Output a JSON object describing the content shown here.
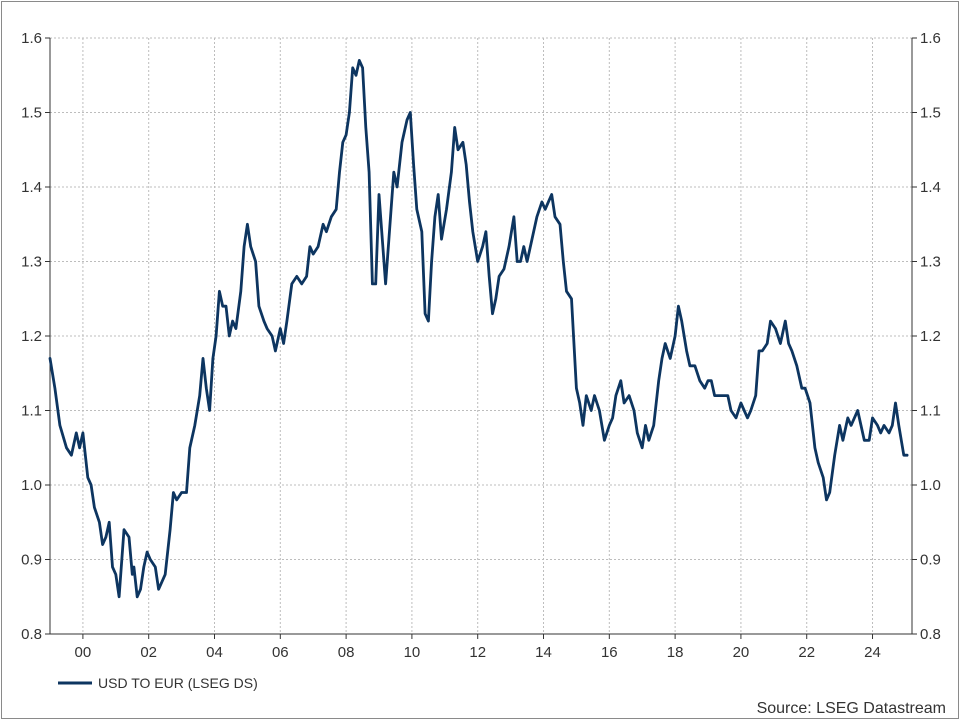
{
  "source": "Source: LSEG Datastream",
  "colors": {
    "series": "#0d3560",
    "grid": "#bdbdbd",
    "axis": "#333333",
    "text": "#333333"
  },
  "chart_data": {
    "type": "line",
    "title": "",
    "xlabel": "",
    "ylabel": "",
    "grid": true,
    "legend_position": "bottom-left",
    "xlim": [
      1999.0,
      2025.2
    ],
    "ylim": [
      0.8,
      1.6
    ],
    "x_ticks": [
      {
        "x": 2000,
        "label": "00"
      },
      {
        "x": 2002,
        "label": "02"
      },
      {
        "x": 2004,
        "label": "04"
      },
      {
        "x": 2006,
        "label": "06"
      },
      {
        "x": 2008,
        "label": "08"
      },
      {
        "x": 2010,
        "label": "10"
      },
      {
        "x": 2012,
        "label": "12"
      },
      {
        "x": 2014,
        "label": "14"
      },
      {
        "x": 2016,
        "label": "16"
      },
      {
        "x": 2018,
        "label": "18"
      },
      {
        "x": 2020,
        "label": "20"
      },
      {
        "x": 2022,
        "label": "22"
      },
      {
        "x": 2024,
        "label": "24"
      }
    ],
    "y_ticks": [
      "0.8",
      "0.9",
      "1.0",
      "1.1",
      "1.2",
      "1.3",
      "1.4",
      "1.5",
      "1.6"
    ],
    "series": [
      {
        "name": "USD TO EUR (LSEG DS)",
        "color": "#0d3560",
        "points": [
          [
            1999.0,
            1.17
          ],
          [
            1999.15,
            1.13
          ],
          [
            1999.3,
            1.08
          ],
          [
            1999.5,
            1.05
          ],
          [
            1999.65,
            1.04
          ],
          [
            1999.8,
            1.07
          ],
          [
            1999.9,
            1.05
          ],
          [
            2000.0,
            1.07
          ],
          [
            2000.15,
            1.01
          ],
          [
            2000.25,
            1.0
          ],
          [
            2000.35,
            0.97
          ],
          [
            2000.5,
            0.95
          ],
          [
            2000.6,
            0.92
          ],
          [
            2000.7,
            0.93
          ],
          [
            2000.8,
            0.95
          ],
          [
            2000.9,
            0.89
          ],
          [
            2001.0,
            0.88
          ],
          [
            2001.1,
            0.85
          ],
          [
            2001.25,
            0.94
          ],
          [
            2001.4,
            0.93
          ],
          [
            2001.5,
            0.88
          ],
          [
            2001.55,
            0.89
          ],
          [
            2001.65,
            0.85
          ],
          [
            2001.75,
            0.86
          ],
          [
            2001.85,
            0.89
          ],
          [
            2001.95,
            0.91
          ],
          [
            2002.05,
            0.9
          ],
          [
            2002.2,
            0.89
          ],
          [
            2002.3,
            0.86
          ],
          [
            2002.5,
            0.88
          ],
          [
            2002.65,
            0.94
          ],
          [
            2002.75,
            0.99
          ],
          [
            2002.85,
            0.98
          ],
          [
            2003.0,
            0.99
          ],
          [
            2003.15,
            0.99
          ],
          [
            2003.25,
            1.05
          ],
          [
            2003.4,
            1.08
          ],
          [
            2003.55,
            1.12
          ],
          [
            2003.65,
            1.17
          ],
          [
            2003.75,
            1.13
          ],
          [
            2003.85,
            1.1
          ],
          [
            2003.95,
            1.17
          ],
          [
            2004.05,
            1.2
          ],
          [
            2004.15,
            1.26
          ],
          [
            2004.25,
            1.24
          ],
          [
            2004.35,
            1.24
          ],
          [
            2004.45,
            1.2
          ],
          [
            2004.55,
            1.22
          ],
          [
            2004.65,
            1.21
          ],
          [
            2004.8,
            1.26
          ],
          [
            2004.9,
            1.32
          ],
          [
            2005.0,
            1.35
          ],
          [
            2005.1,
            1.32
          ],
          [
            2005.25,
            1.3
          ],
          [
            2005.35,
            1.24
          ],
          [
            2005.5,
            1.22
          ],
          [
            2005.6,
            1.21
          ],
          [
            2005.75,
            1.2
          ],
          [
            2005.85,
            1.18
          ],
          [
            2006.0,
            1.21
          ],
          [
            2006.1,
            1.19
          ],
          [
            2006.2,
            1.22
          ],
          [
            2006.35,
            1.27
          ],
          [
            2006.5,
            1.28
          ],
          [
            2006.65,
            1.27
          ],
          [
            2006.8,
            1.28
          ],
          [
            2006.9,
            1.32
          ],
          [
            2007.0,
            1.31
          ],
          [
            2007.15,
            1.32
          ],
          [
            2007.3,
            1.35
          ],
          [
            2007.4,
            1.34
          ],
          [
            2007.55,
            1.36
          ],
          [
            2007.7,
            1.37
          ],
          [
            2007.8,
            1.42
          ],
          [
            2007.9,
            1.46
          ],
          [
            2008.0,
            1.47
          ],
          [
            2008.1,
            1.5
          ],
          [
            2008.2,
            1.56
          ],
          [
            2008.3,
            1.55
          ],
          [
            2008.4,
            1.57
          ],
          [
            2008.5,
            1.56
          ],
          [
            2008.6,
            1.48
          ],
          [
            2008.7,
            1.42
          ],
          [
            2008.8,
            1.27
          ],
          [
            2008.9,
            1.27
          ],
          [
            2009.0,
            1.39
          ],
          [
            2009.1,
            1.33
          ],
          [
            2009.2,
            1.27
          ],
          [
            2009.3,
            1.33
          ],
          [
            2009.45,
            1.42
          ],
          [
            2009.55,
            1.4
          ],
          [
            2009.7,
            1.46
          ],
          [
            2009.85,
            1.49
          ],
          [
            2009.95,
            1.5
          ],
          [
            2010.05,
            1.43
          ],
          [
            2010.15,
            1.37
          ],
          [
            2010.3,
            1.34
          ],
          [
            2010.4,
            1.23
          ],
          [
            2010.5,
            1.22
          ],
          [
            2010.6,
            1.3
          ],
          [
            2010.7,
            1.36
          ],
          [
            2010.8,
            1.39
          ],
          [
            2010.9,
            1.33
          ],
          [
            2011.05,
            1.37
          ],
          [
            2011.2,
            1.42
          ],
          [
            2011.3,
            1.48
          ],
          [
            2011.4,
            1.45
          ],
          [
            2011.55,
            1.46
          ],
          [
            2011.65,
            1.43
          ],
          [
            2011.75,
            1.38
          ],
          [
            2011.85,
            1.34
          ],
          [
            2012.0,
            1.3
          ],
          [
            2012.15,
            1.32
          ],
          [
            2012.25,
            1.34
          ],
          [
            2012.35,
            1.28
          ],
          [
            2012.45,
            1.23
          ],
          [
            2012.55,
            1.25
          ],
          [
            2012.65,
            1.28
          ],
          [
            2012.8,
            1.29
          ],
          [
            2012.95,
            1.32
          ],
          [
            2013.1,
            1.36
          ],
          [
            2013.2,
            1.3
          ],
          [
            2013.3,
            1.3
          ],
          [
            2013.4,
            1.32
          ],
          [
            2013.5,
            1.3
          ],
          [
            2013.65,
            1.33
          ],
          [
            2013.8,
            1.36
          ],
          [
            2013.95,
            1.38
          ],
          [
            2014.05,
            1.37
          ],
          [
            2014.15,
            1.38
          ],
          [
            2014.25,
            1.39
          ],
          [
            2014.35,
            1.36
          ],
          [
            2014.5,
            1.35
          ],
          [
            2014.6,
            1.3
          ],
          [
            2014.7,
            1.26
          ],
          [
            2014.85,
            1.25
          ],
          [
            2015.0,
            1.13
          ],
          [
            2015.1,
            1.11
          ],
          [
            2015.2,
            1.08
          ],
          [
            2015.3,
            1.12
          ],
          [
            2015.45,
            1.1
          ],
          [
            2015.55,
            1.12
          ],
          [
            2015.7,
            1.1
          ],
          [
            2015.85,
            1.06
          ],
          [
            2016.0,
            1.08
          ],
          [
            2016.1,
            1.09
          ],
          [
            2016.2,
            1.12
          ],
          [
            2016.35,
            1.14
          ],
          [
            2016.45,
            1.11
          ],
          [
            2016.6,
            1.12
          ],
          [
            2016.75,
            1.1
          ],
          [
            2016.85,
            1.07
          ],
          [
            2017.0,
            1.05
          ],
          [
            2017.1,
            1.08
          ],
          [
            2017.2,
            1.06
          ],
          [
            2017.35,
            1.08
          ],
          [
            2017.5,
            1.14
          ],
          [
            2017.6,
            1.17
          ],
          [
            2017.7,
            1.19
          ],
          [
            2017.85,
            1.17
          ],
          [
            2018.0,
            1.2
          ],
          [
            2018.1,
            1.24
          ],
          [
            2018.2,
            1.22
          ],
          [
            2018.35,
            1.18
          ],
          [
            2018.45,
            1.16
          ],
          [
            2018.6,
            1.16
          ],
          [
            2018.75,
            1.14
          ],
          [
            2018.9,
            1.13
          ],
          [
            2019.0,
            1.14
          ],
          [
            2019.1,
            1.14
          ],
          [
            2019.2,
            1.12
          ],
          [
            2019.35,
            1.12
          ],
          [
            2019.5,
            1.12
          ],
          [
            2019.6,
            1.12
          ],
          [
            2019.7,
            1.1
          ],
          [
            2019.85,
            1.09
          ],
          [
            2020.0,
            1.11
          ],
          [
            2020.1,
            1.1
          ],
          [
            2020.2,
            1.09
          ],
          [
            2020.3,
            1.1
          ],
          [
            2020.45,
            1.12
          ],
          [
            2020.55,
            1.18
          ],
          [
            2020.65,
            1.18
          ],
          [
            2020.8,
            1.19
          ],
          [
            2020.9,
            1.22
          ],
          [
            2021.05,
            1.21
          ],
          [
            2021.2,
            1.19
          ],
          [
            2021.35,
            1.22
          ],
          [
            2021.45,
            1.19
          ],
          [
            2021.55,
            1.18
          ],
          [
            2021.7,
            1.16
          ],
          [
            2021.85,
            1.13
          ],
          [
            2021.95,
            1.13
          ],
          [
            2022.1,
            1.11
          ],
          [
            2022.25,
            1.05
          ],
          [
            2022.35,
            1.03
          ],
          [
            2022.5,
            1.01
          ],
          [
            2022.6,
            0.98
          ],
          [
            2022.7,
            0.99
          ],
          [
            2022.85,
            1.04
          ],
          [
            2023.0,
            1.08
          ],
          [
            2023.1,
            1.06
          ],
          [
            2023.25,
            1.09
          ],
          [
            2023.35,
            1.08
          ],
          [
            2023.45,
            1.09
          ],
          [
            2023.55,
            1.1
          ],
          [
            2023.65,
            1.08
          ],
          [
            2023.75,
            1.06
          ],
          [
            2023.9,
            1.06
          ],
          [
            2024.0,
            1.09
          ],
          [
            2024.15,
            1.08
          ],
          [
            2024.25,
            1.07
          ],
          [
            2024.35,
            1.08
          ],
          [
            2024.5,
            1.07
          ],
          [
            2024.6,
            1.08
          ],
          [
            2024.7,
            1.11
          ],
          [
            2024.8,
            1.08
          ],
          [
            2024.95,
            1.04
          ],
          [
            2025.05,
            1.04
          ]
        ]
      }
    ]
  }
}
